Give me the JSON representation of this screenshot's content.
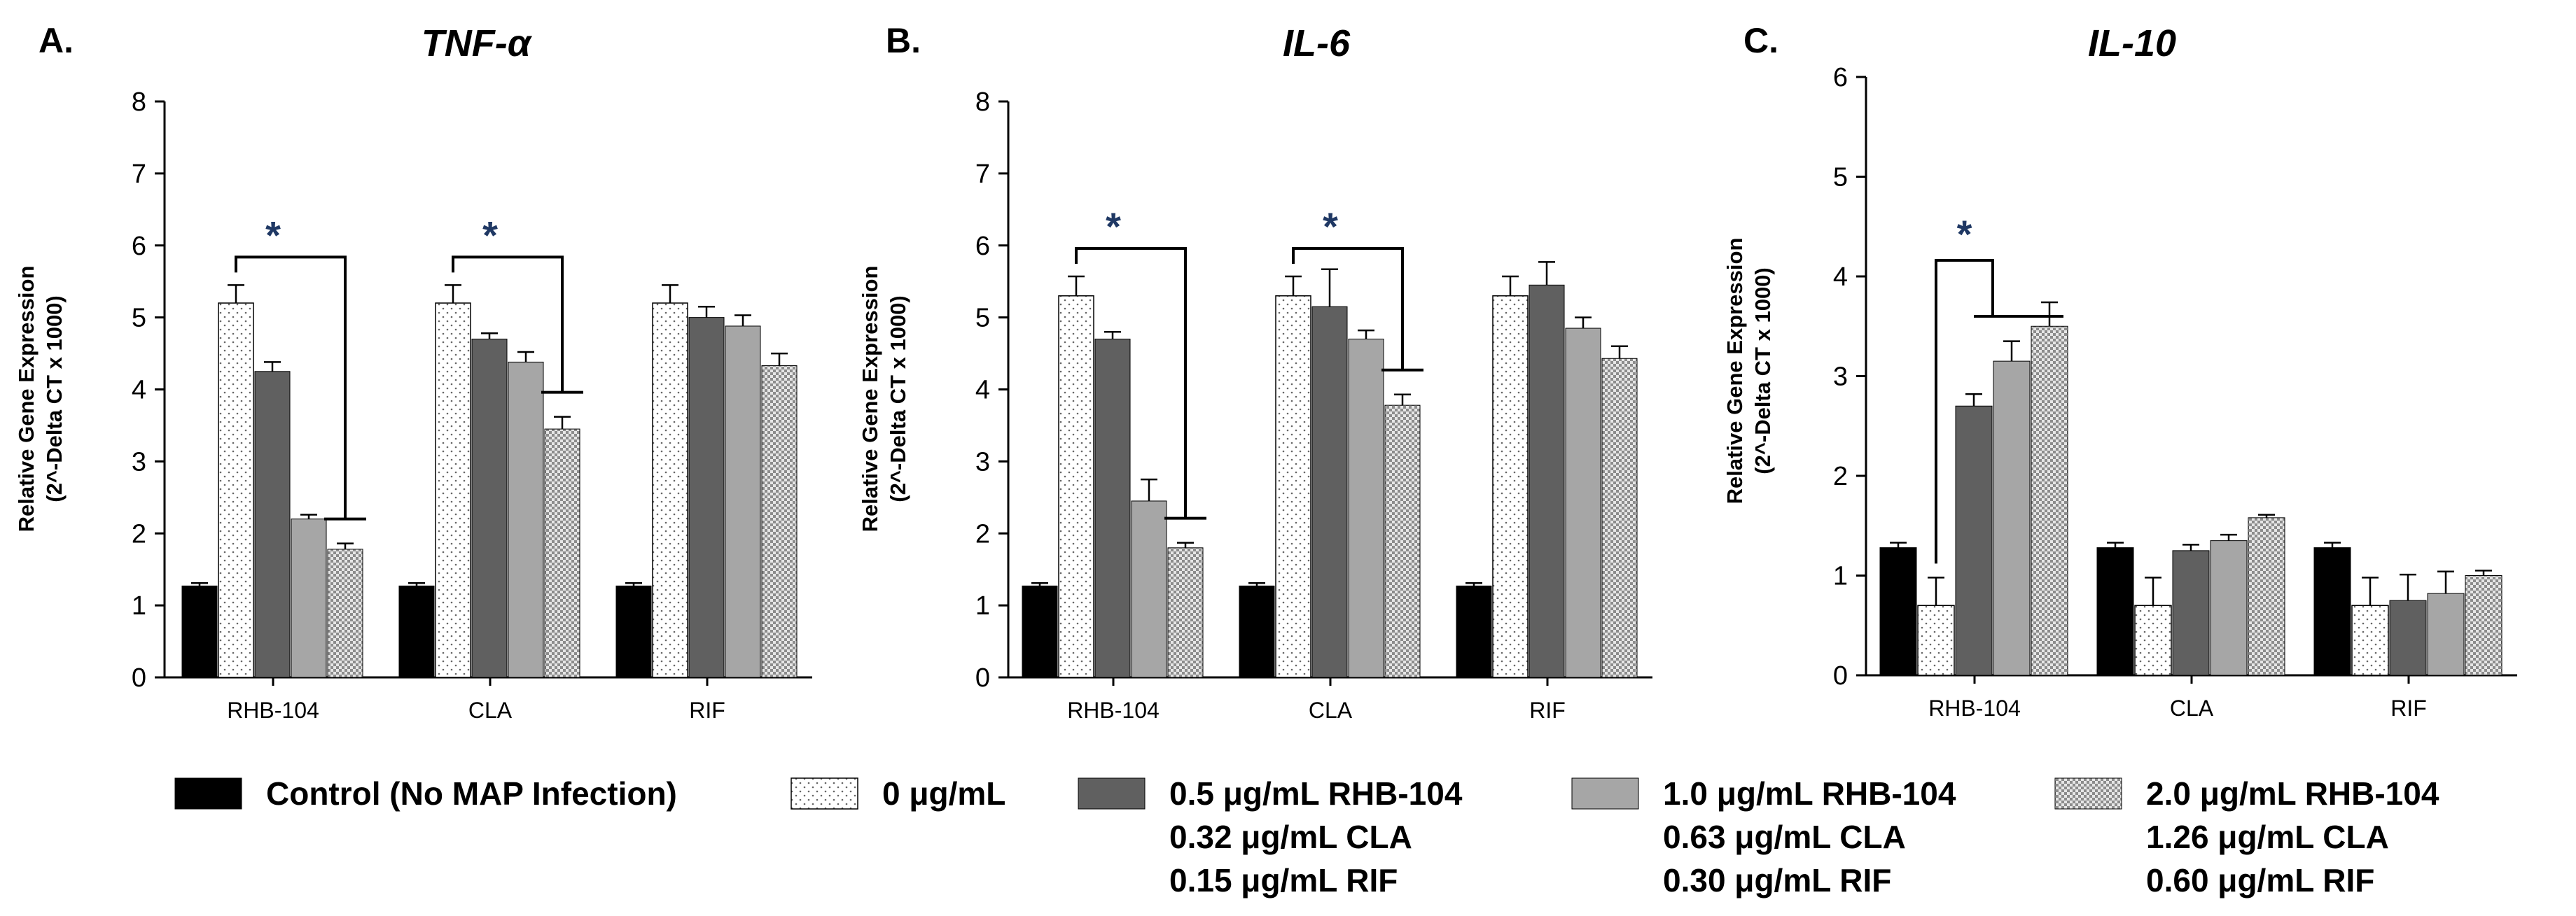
{
  "chart_data": [
    {
      "type": "bar",
      "panel_label": "A.",
      "title": "TNF-α",
      "ylabel_line1": "Relative Gene Expression",
      "ylabel_line2": "(2^-Delta CT x 1000)",
      "ylim": [
        0,
        8
      ],
      "yticks": [
        "0",
        "1",
        "2",
        "3",
        "4",
        "5",
        "6",
        "7",
        "8"
      ],
      "categories": [
        "RHB-104",
        "CLA",
        "RIF"
      ],
      "series": [
        {
          "values": [
            1.27,
            1.27,
            1.27
          ],
          "errors": [
            0.04,
            0.04,
            0.04
          ]
        },
        {
          "values": [
            5.2,
            5.2,
            5.2
          ],
          "errors": [
            0.25,
            0.25,
            0.25
          ]
        },
        {
          "values": [
            4.25,
            4.7,
            5.0
          ],
          "errors": [
            0.13,
            0.08,
            0.15
          ]
        },
        {
          "values": [
            2.2,
            4.38,
            4.88
          ],
          "errors": [
            0.06,
            0.14,
            0.15
          ]
        },
        {
          "values": [
            1.78,
            3.45,
            4.33
          ],
          "errors": [
            0.08,
            0.17,
            0.17
          ]
        }
      ],
      "significance": [
        {
          "category": 0,
          "label": "*"
        },
        {
          "category": 1,
          "label": "*"
        }
      ],
      "legend": "bottom",
      "grid": false
    },
    {
      "type": "bar",
      "panel_label": "B.",
      "title": "IL-6",
      "ylabel_line1": "Relative Gene Expression",
      "ylabel_line2": "(2^-Delta CT x 1000)",
      "ylim": [
        0,
        8
      ],
      "yticks": [
        "0",
        "1",
        "2",
        "3",
        "4",
        "5",
        "6",
        "7",
        "8"
      ],
      "categories": [
        "RHB-104",
        "CLA",
        "RIF"
      ],
      "series": [
        {
          "values": [
            1.27,
            1.27,
            1.27
          ],
          "errors": [
            0.04,
            0.04,
            0.04
          ]
        },
        {
          "values": [
            5.3,
            5.3,
            5.3
          ],
          "errors": [
            0.27,
            0.27,
            0.27
          ]
        },
        {
          "values": [
            4.7,
            5.15,
            5.45
          ],
          "errors": [
            0.1,
            0.52,
            0.32
          ]
        },
        {
          "values": [
            2.45,
            4.7,
            4.85
          ],
          "errors": [
            0.3,
            0.12,
            0.15
          ]
        },
        {
          "values": [
            1.8,
            3.78,
            4.43
          ],
          "errors": [
            0.07,
            0.15,
            0.17
          ]
        }
      ],
      "significance": [
        {
          "category": 0,
          "label": "*"
        },
        {
          "category": 1,
          "label": "*"
        }
      ],
      "legend": "bottom",
      "grid": false
    },
    {
      "type": "bar",
      "panel_label": "C.",
      "title": "IL-10",
      "ylabel_line1": "Relative Gene Expression",
      "ylabel_line2": "(2^-Delta CT x 1000)",
      "ylim": [
        0,
        6
      ],
      "yticks": [
        "0",
        "1",
        "2",
        "3",
        "4",
        "5",
        "6"
      ],
      "categories": [
        "RHB-104",
        "CLA",
        "RIF"
      ],
      "series": [
        {
          "values": [
            1.28,
            1.28,
            1.28
          ],
          "errors": [
            0.05,
            0.05,
            0.05
          ]
        },
        {
          "values": [
            0.7,
            0.7,
            0.7
          ],
          "errors": [
            0.28,
            0.28,
            0.28
          ]
        },
        {
          "values": [
            2.7,
            1.25,
            0.75
          ],
          "errors": [
            0.12,
            0.06,
            0.26
          ]
        },
        {
          "values": [
            3.15,
            1.35,
            0.82
          ],
          "errors": [
            0.2,
            0.06,
            0.22
          ]
        },
        {
          "values": [
            3.5,
            1.58,
            1.0
          ],
          "errors": [
            0.24,
            0.03,
            0.05
          ]
        }
      ],
      "significance": [
        {
          "category": 0,
          "label": "*"
        }
      ],
      "legend": "bottom",
      "grid": false
    }
  ],
  "legend": {
    "items": [
      {
        "lines": [
          "Control (No MAP Infection)"
        ],
        "color": "#000000",
        "pattern": "solid-black"
      },
      {
        "lines": [
          "0 μg/mL"
        ],
        "color": "#ffffff",
        "pattern": "dots"
      },
      {
        "lines": [
          "0.5 μg/mL RHB-104",
          "0.32 μg/mL CLA",
          "0.15 μg/mL RIF"
        ],
        "color": "#606060",
        "pattern": "solid-dark-gray"
      },
      {
        "lines": [
          "1.0 μg/mL RHB-104",
          "0.63 μg/mL CLA",
          "0.30 μg/mL RIF"
        ],
        "color": "#a6a6a6",
        "pattern": "solid-light-gray"
      },
      {
        "lines": [
          "2.0 μg/mL RHB-104",
          "1.26 μg/mL CLA",
          "0.60 μg/mL RIF"
        ],
        "color": "#d0d0d0",
        "pattern": "checkerboard"
      }
    ]
  }
}
